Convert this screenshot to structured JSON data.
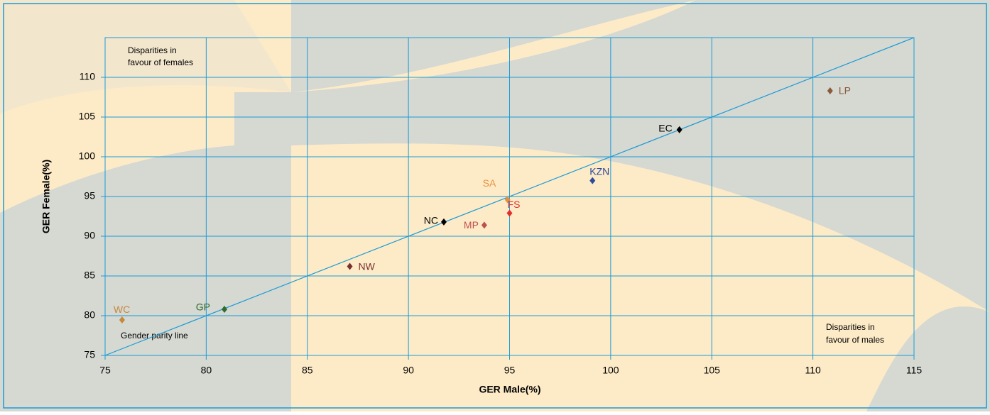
{
  "chart_data": {
    "type": "scatter",
    "x_label": "GER Male(%)",
    "y_label": "GER Female(%)",
    "xlim": [
      75,
      115
    ],
    "ylim": [
      75,
      115
    ],
    "xticks": [
      75,
      80,
      85,
      90,
      95,
      100,
      105,
      110,
      115
    ],
    "yticks": [
      75,
      80,
      85,
      90,
      95,
      100,
      105,
      110
    ],
    "grid": true,
    "parity_line": [
      75,
      115
    ],
    "annotations": [
      "Disparities in",
      "favour of females",
      "Disparities in",
      "favour of males",
      "Gender parity line"
    ],
    "series": [
      {
        "name": "WC",
        "color": "#c8883c",
        "x": [
          75.84
        ],
        "values": [
          79.46
        ]
      },
      {
        "name": "GP",
        "color": "#2e6b2e",
        "x": [
          80.9
        ],
        "values": [
          80.8
        ]
      },
      {
        "name": "NW",
        "color": "#7a3030",
        "x": [
          87.1
        ],
        "values": [
          86.2
        ]
      },
      {
        "name": "NC",
        "color": "#000000",
        "x": [
          91.75
        ],
        "values": [
          91.8
        ]
      },
      {
        "name": "MP",
        "color": "#c0504d",
        "x": [
          93.75
        ],
        "values": [
          91.4
        ]
      },
      {
        "name": "SA",
        "color": "#e8903c",
        "x": [
          94.9
        ],
        "values": [
          94.6
        ]
      },
      {
        "name": "FS",
        "color": "#e03030",
        "x": [
          95.0
        ],
        "values": [
          92.9
        ]
      },
      {
        "name": "KZN",
        "color": "#2e4a9a",
        "x": [
          99.1
        ],
        "values": [
          97.0
        ]
      },
      {
        "name": "EC",
        "color": "#000000",
        "x": [
          103.4
        ],
        "values": [
          103.4
        ]
      },
      {
        "name": "LP",
        "color": "#8b5a3c",
        "x": [
          110.85
        ],
        "values": [
          108.3
        ]
      }
    ]
  }
}
